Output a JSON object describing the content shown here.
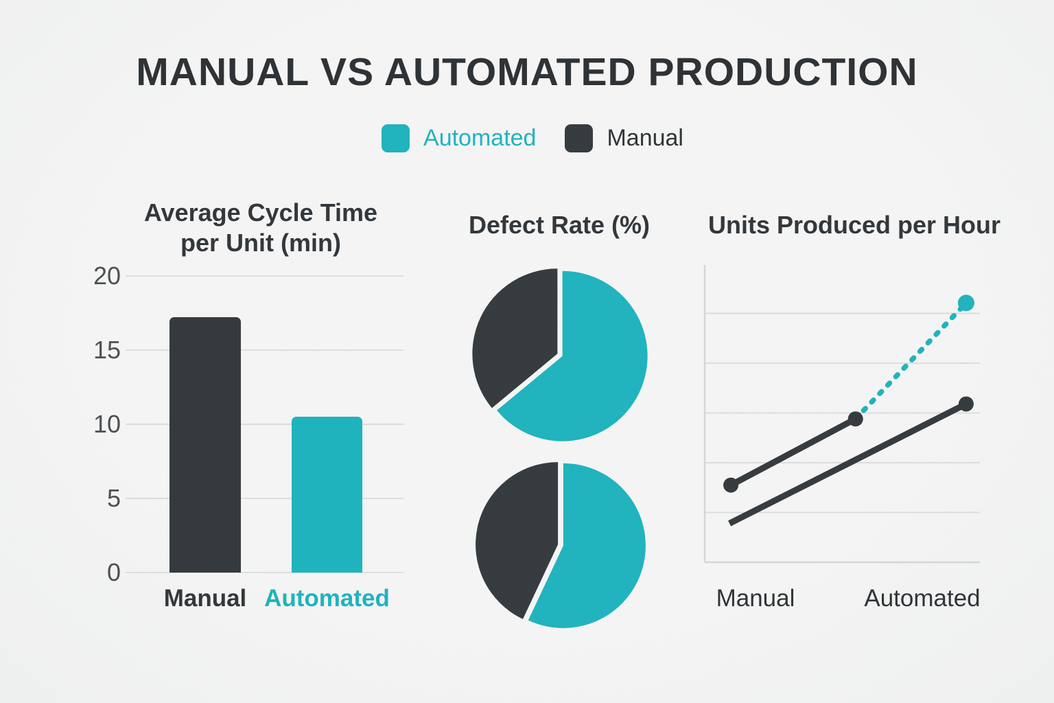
{
  "page": {
    "title": "MANUAL VS AUTOMATED PRODUCTION",
    "background": "#f3f4f4"
  },
  "colors": {
    "teal": "#1fb3be",
    "dark": "#343a3d",
    "title_dark": "#2d3134",
    "grid": "#dcdddd",
    "axis": "#d4d6d7",
    "tick_text": "#4d5154"
  },
  "legend": {
    "items": [
      {
        "label": "Automated",
        "color_key": "teal"
      },
      {
        "label": "Manual",
        "color_key": "dark"
      }
    ]
  },
  "chart_data": [
    {
      "type": "bar",
      "title": "Average Cycle Time per Unit (min)",
      "title_lines": [
        "Average Cycle Time",
        "per Unit (min)"
      ],
      "categories": [
        "Manual",
        "Automated"
      ],
      "values": [
        17.2,
        10.5
      ],
      "bar_color_keys": [
        "dark",
        "teal"
      ],
      "category_color_keys": [
        "dark",
        "teal"
      ],
      "xlabel": "",
      "ylabel": "",
      "ylim": [
        0,
        20
      ],
      "yticks": [
        20,
        15,
        10,
        5,
        0
      ],
      "grid": true
    },
    {
      "type": "pie",
      "title": "Defect Rate (%)",
      "pies": [
        {
          "position": "top",
          "slices": [
            {
              "label": "Automated",
              "pct": 64,
              "color_key": "teal"
            },
            {
              "label": "Manual",
              "pct": 36,
              "color_key": "dark"
            }
          ]
        },
        {
          "position": "bottom",
          "slices": [
            {
              "label": "Automated",
              "pct": 57,
              "color_key": "teal"
            },
            {
              "label": "Manual",
              "pct": 43,
              "color_key": "dark"
            }
          ]
        }
      ]
    },
    {
      "type": "line",
      "title": "Units Produced per Hour",
      "categories": [
        "Manual",
        "Automated"
      ],
      "y_axis_labels": false,
      "gridline_count": 5,
      "y_units_max": 6,
      "grid": true,
      "series": [
        {
          "name": "automated-actual",
          "color_key": "dark",
          "dashed": false,
          "dots": [
            0,
            1
          ],
          "points": [
            [
              0.095,
              1.55
            ],
            [
              0.548,
              2.88
            ]
          ]
        },
        {
          "name": "automated-projection",
          "color_key": "teal",
          "dashed": true,
          "dots": [
            1
          ],
          "points": [
            [
              0.548,
              2.88
            ],
            [
              0.95,
              5.21
            ]
          ]
        },
        {
          "name": "manual",
          "color_key": "dark",
          "dashed": false,
          "dots": [
            1
          ],
          "points": [
            [
              0.09,
              0.78
            ],
            [
              0.95,
              3.18
            ]
          ]
        }
      ]
    }
  ]
}
